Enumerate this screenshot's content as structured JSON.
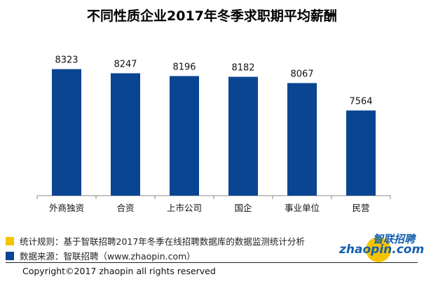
{
  "chart_data": {
    "type": "bar",
    "title": "不同性质企业2017年冬季求职期平均薪酬",
    "categories": [
      "外商独资",
      "合资",
      "上市公司",
      "国企",
      "事业单位",
      "民营"
    ],
    "values": [
      8323,
      8247,
      8196,
      8182,
      8067,
      7564
    ],
    "xlabel": "",
    "ylabel": "",
    "ylim": [
      6000,
      9000
    ],
    "grid": false,
    "bar_color": "#0a4592"
  },
  "legend": {
    "rule_text": "统计规则：基于智联招聘2017年冬季在线招聘数据库的数据监测统计分析",
    "rule_color": "#f5c400",
    "source_text": "数据来源：智联招聘（www.zhaopin.com）",
    "source_color": "#0a4592"
  },
  "logo": {
    "cn": "智联招聘",
    "en": "zhaopin.com"
  },
  "copyright": "Copyright©2017 zhaopin all rights reserved"
}
